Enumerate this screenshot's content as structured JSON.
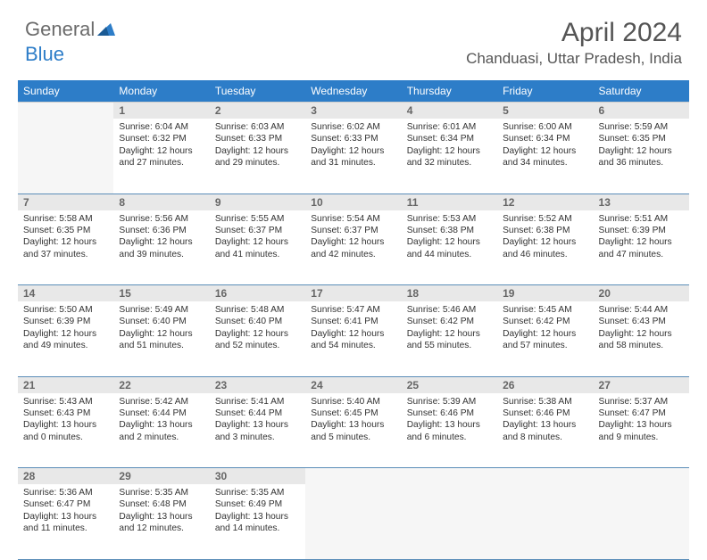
{
  "logo": {
    "text1": "General",
    "text2": "Blue"
  },
  "title": "April 2024",
  "location": "Chanduasi, Uttar Pradesh, India",
  "colors": {
    "header_bg": "#2d7dc8",
    "header_text": "#ffffff",
    "daynum_bg": "#e8e8e8",
    "empty_bg": "#f6f6f6",
    "row_border": "#5a8db8",
    "logo_gray": "#6b6b6b",
    "logo_blue": "#2d7dc8"
  },
  "weekdays": [
    "Sunday",
    "Monday",
    "Tuesday",
    "Wednesday",
    "Thursday",
    "Friday",
    "Saturday"
  ],
  "first_weekday_index": 1,
  "days_in_month": 30,
  "days": {
    "1": {
      "sunrise": "6:04 AM",
      "sunset": "6:32 PM",
      "daylight": "12 hours and 27 minutes."
    },
    "2": {
      "sunrise": "6:03 AM",
      "sunset": "6:33 PM",
      "daylight": "12 hours and 29 minutes."
    },
    "3": {
      "sunrise": "6:02 AM",
      "sunset": "6:33 PM",
      "daylight": "12 hours and 31 minutes."
    },
    "4": {
      "sunrise": "6:01 AM",
      "sunset": "6:34 PM",
      "daylight": "12 hours and 32 minutes."
    },
    "5": {
      "sunrise": "6:00 AM",
      "sunset": "6:34 PM",
      "daylight": "12 hours and 34 minutes."
    },
    "6": {
      "sunrise": "5:59 AM",
      "sunset": "6:35 PM",
      "daylight": "12 hours and 36 minutes."
    },
    "7": {
      "sunrise": "5:58 AM",
      "sunset": "6:35 PM",
      "daylight": "12 hours and 37 minutes."
    },
    "8": {
      "sunrise": "5:56 AM",
      "sunset": "6:36 PM",
      "daylight": "12 hours and 39 minutes."
    },
    "9": {
      "sunrise": "5:55 AM",
      "sunset": "6:37 PM",
      "daylight": "12 hours and 41 minutes."
    },
    "10": {
      "sunrise": "5:54 AM",
      "sunset": "6:37 PM",
      "daylight": "12 hours and 42 minutes."
    },
    "11": {
      "sunrise": "5:53 AM",
      "sunset": "6:38 PM",
      "daylight": "12 hours and 44 minutes."
    },
    "12": {
      "sunrise": "5:52 AM",
      "sunset": "6:38 PM",
      "daylight": "12 hours and 46 minutes."
    },
    "13": {
      "sunrise": "5:51 AM",
      "sunset": "6:39 PM",
      "daylight": "12 hours and 47 minutes."
    },
    "14": {
      "sunrise": "5:50 AM",
      "sunset": "6:39 PM",
      "daylight": "12 hours and 49 minutes."
    },
    "15": {
      "sunrise": "5:49 AM",
      "sunset": "6:40 PM",
      "daylight": "12 hours and 51 minutes."
    },
    "16": {
      "sunrise": "5:48 AM",
      "sunset": "6:40 PM",
      "daylight": "12 hours and 52 minutes."
    },
    "17": {
      "sunrise": "5:47 AM",
      "sunset": "6:41 PM",
      "daylight": "12 hours and 54 minutes."
    },
    "18": {
      "sunrise": "5:46 AM",
      "sunset": "6:42 PM",
      "daylight": "12 hours and 55 minutes."
    },
    "19": {
      "sunrise": "5:45 AM",
      "sunset": "6:42 PM",
      "daylight": "12 hours and 57 minutes."
    },
    "20": {
      "sunrise": "5:44 AM",
      "sunset": "6:43 PM",
      "daylight": "12 hours and 58 minutes."
    },
    "21": {
      "sunrise": "5:43 AM",
      "sunset": "6:43 PM",
      "daylight": "13 hours and 0 minutes."
    },
    "22": {
      "sunrise": "5:42 AM",
      "sunset": "6:44 PM",
      "daylight": "13 hours and 2 minutes."
    },
    "23": {
      "sunrise": "5:41 AM",
      "sunset": "6:44 PM",
      "daylight": "13 hours and 3 minutes."
    },
    "24": {
      "sunrise": "5:40 AM",
      "sunset": "6:45 PM",
      "daylight": "13 hours and 5 minutes."
    },
    "25": {
      "sunrise": "5:39 AM",
      "sunset": "6:46 PM",
      "daylight": "13 hours and 6 minutes."
    },
    "26": {
      "sunrise": "5:38 AM",
      "sunset": "6:46 PM",
      "daylight": "13 hours and 8 minutes."
    },
    "27": {
      "sunrise": "5:37 AM",
      "sunset": "6:47 PM",
      "daylight": "13 hours and 9 minutes."
    },
    "28": {
      "sunrise": "5:36 AM",
      "sunset": "6:47 PM",
      "daylight": "13 hours and 11 minutes."
    },
    "29": {
      "sunrise": "5:35 AM",
      "sunset": "6:48 PM",
      "daylight": "13 hours and 12 minutes."
    },
    "30": {
      "sunrise": "5:35 AM",
      "sunset": "6:49 PM",
      "daylight": "13 hours and 14 minutes."
    }
  },
  "labels": {
    "sunrise": "Sunrise:",
    "sunset": "Sunset:",
    "daylight": "Daylight:"
  }
}
